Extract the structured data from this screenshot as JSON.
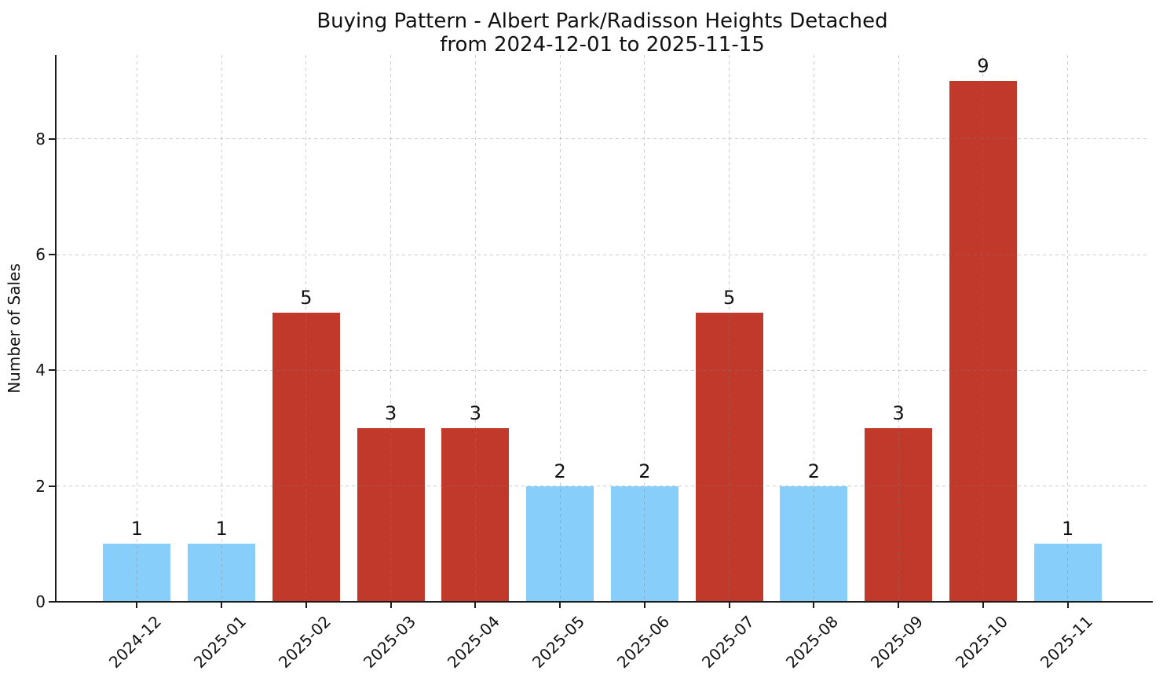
{
  "chart_data": {
    "type": "bar",
    "title": "Buying Pattern - Albert Park/Radisson Heights Detached",
    "subtitle": "from 2024-12-01 to 2025-11-15",
    "xlabel": "",
    "ylabel": "Number of Sales",
    "categories": [
      "2024-12",
      "2025-01",
      "2025-02",
      "2025-03",
      "2025-04",
      "2025-05",
      "2025-06",
      "2025-07",
      "2025-08",
      "2025-09",
      "2025-10",
      "2025-11"
    ],
    "values": [
      1,
      1,
      5,
      3,
      3,
      2,
      2,
      5,
      2,
      3,
      9,
      1
    ],
    "bar_colors": [
      "#87CEFA",
      "#87CEFA",
      "#C0392B",
      "#C0392B",
      "#C0392B",
      "#87CEFA",
      "#87CEFA",
      "#C0392B",
      "#87CEFA",
      "#C0392B",
      "#C0392B",
      "#87CEFA"
    ],
    "yticks": [
      0,
      2,
      4,
      6,
      8
    ],
    "ylim": [
      0,
      9.45
    ],
    "grid": "dashed, horizontal at y-ticks and vertical at each category, drawn over bars",
    "legend_position": "none",
    "palette": {
      "blue_bar": "#87CEFA",
      "red_bar": "#C0392B",
      "grid_line": "#D6D6D6",
      "axis_line": "#1C1C1C",
      "text": "#111111"
    }
  }
}
